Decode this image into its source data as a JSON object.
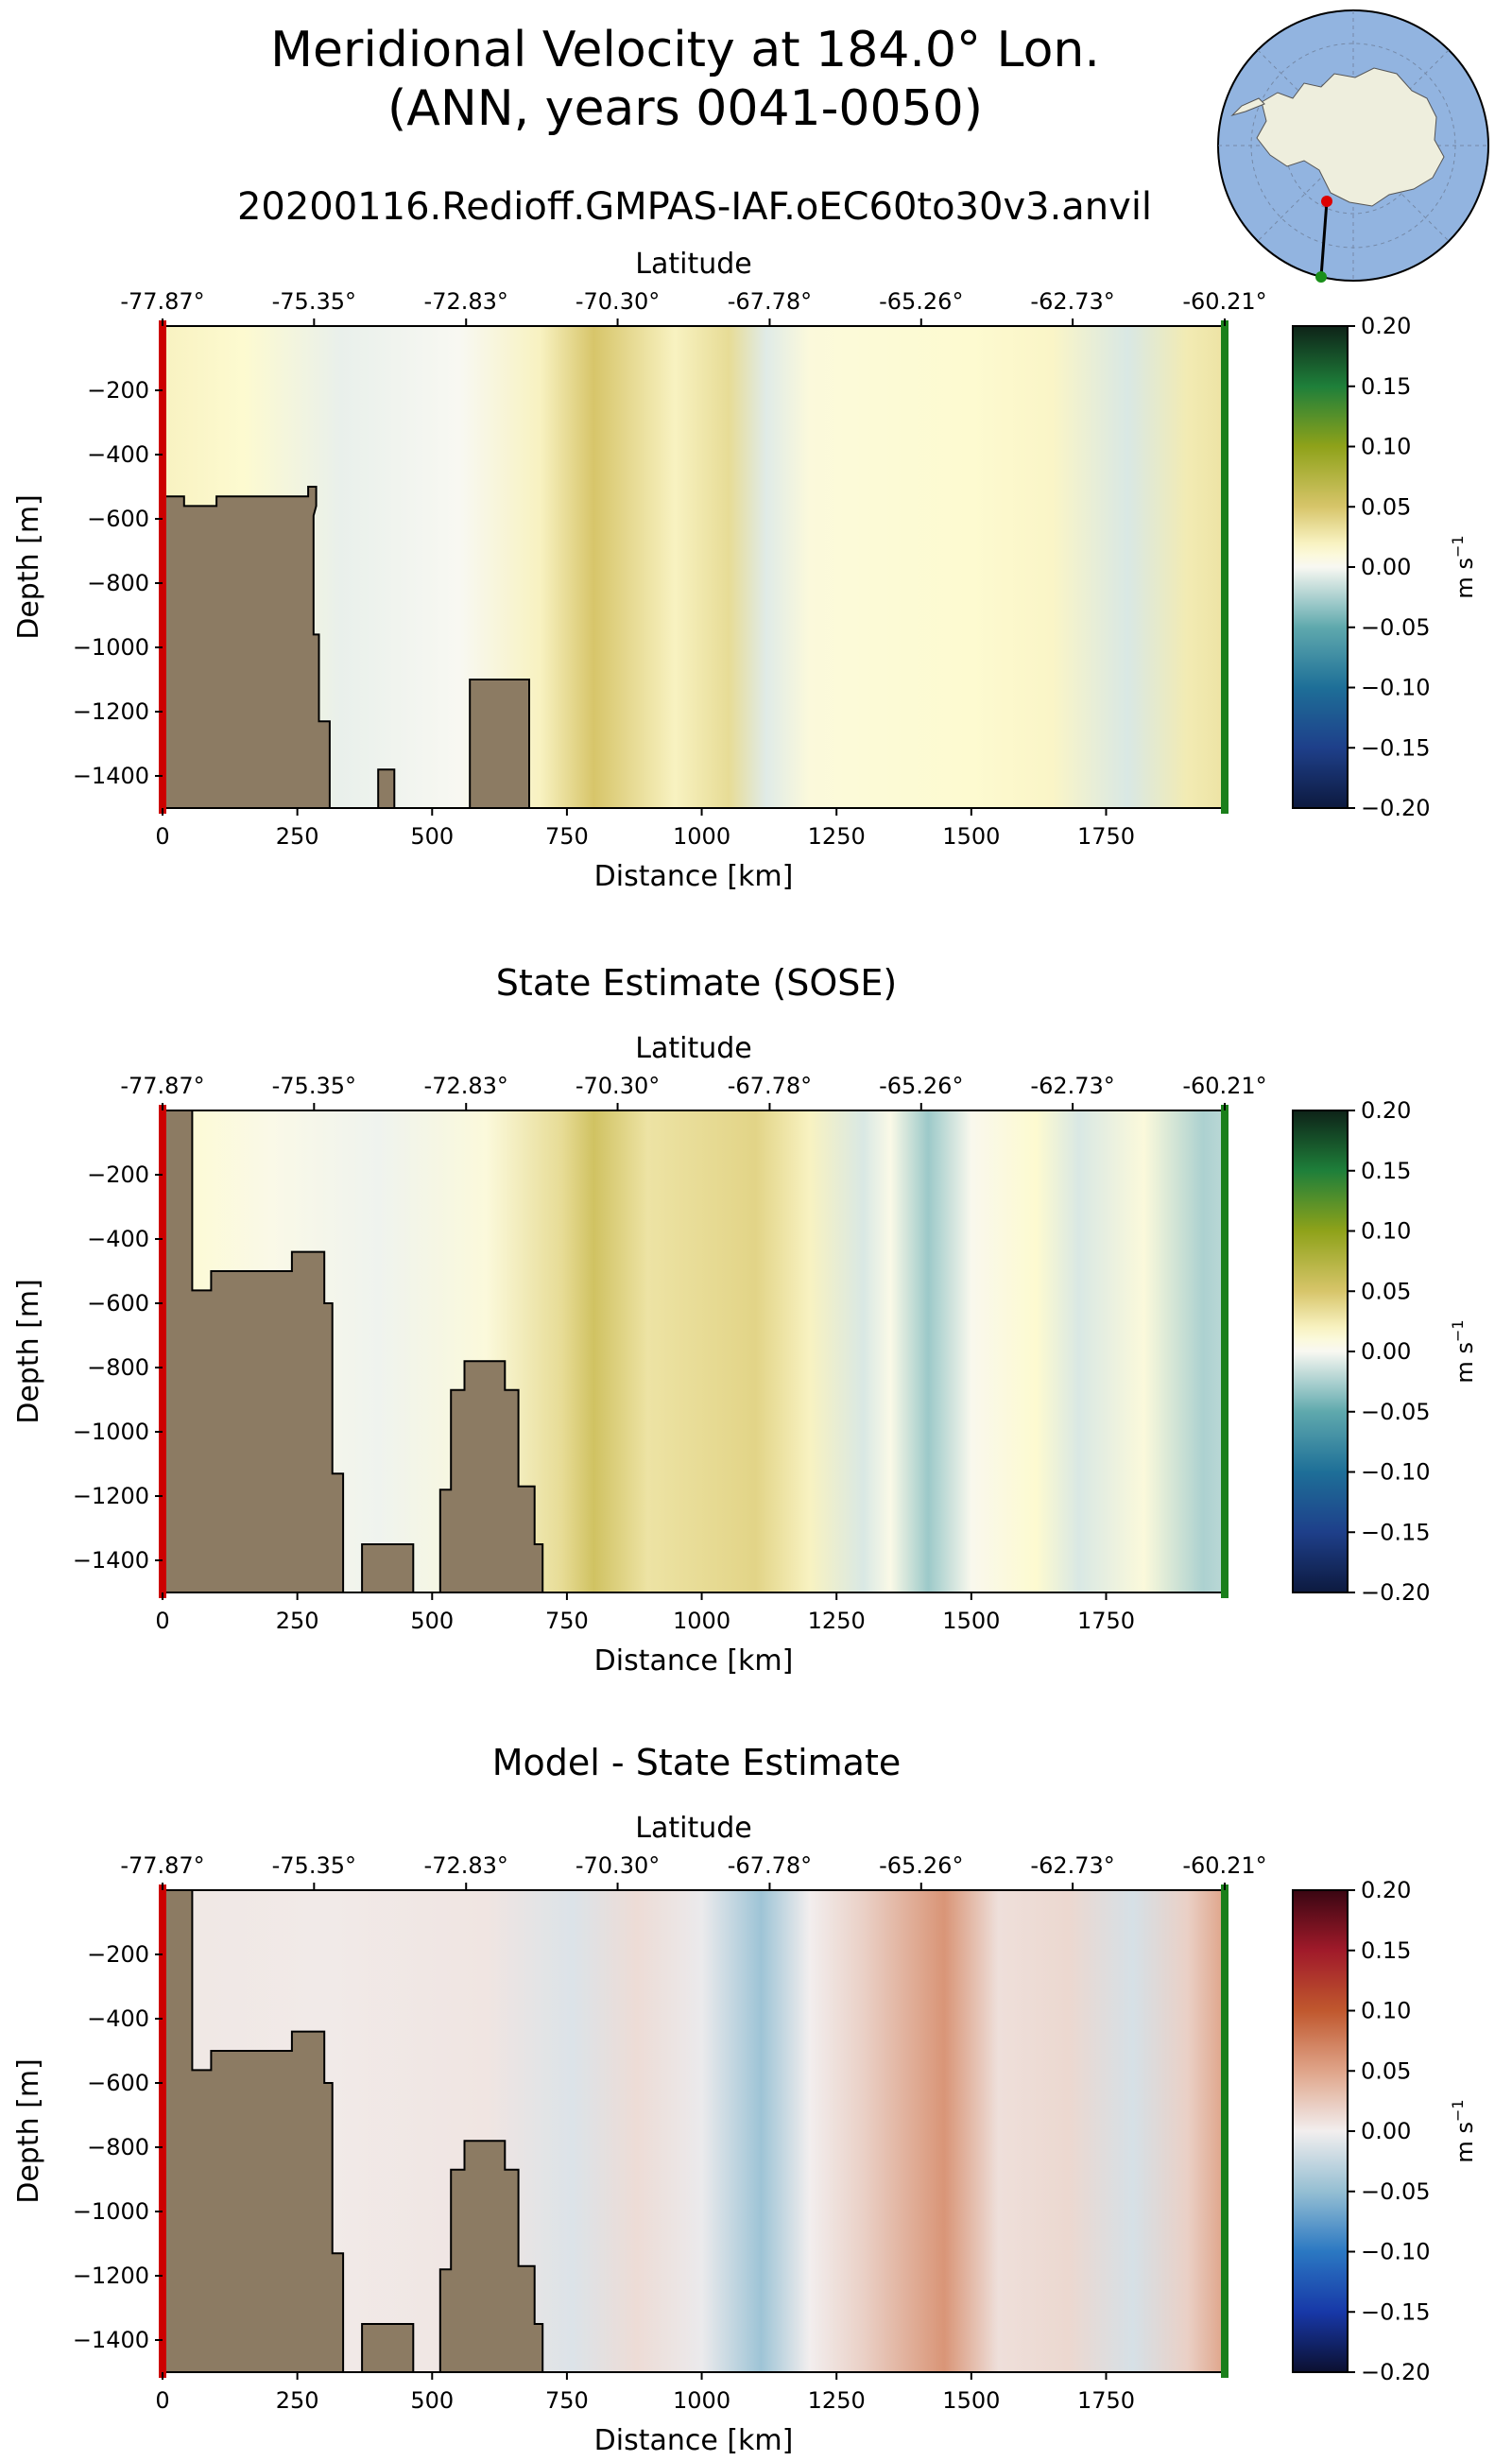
{
  "figure": {
    "title_line1": "Meridional Velocity at 184.0° Lon.",
    "title_line2": "(ANN, years 0041-0050)",
    "run_name": "20200116.Redioff.GMPAS-IAF.oEC60to30v3.anvil",
    "inset_map": "antarctic-polar-stereographic-map-with-transect"
  },
  "colors": {
    "land": "#8c7b63",
    "start_marker": "#cc0000",
    "end_marker": "#1a7f1a"
  },
  "labels": {
    "latitude": "Latitude",
    "distance": "Distance [km]",
    "depth": "Depth [m]",
    "units_prefix": "m s",
    "units_exp": "−1"
  },
  "chart_data": [
    {
      "type": "heatmap",
      "id": "model",
      "title": "",
      "xlabel": "Distance [km]",
      "ylabel": "Depth [m]",
      "top_xlabel": "Latitude",
      "xlim": [
        0,
        1970
      ],
      "ylim": [
        -1500,
        0
      ],
      "x_ticks": [
        0,
        250,
        500,
        750,
        1000,
        1250,
        1500,
        1750
      ],
      "x_tick_labels": [
        "0",
        "250",
        "500",
        "750",
        "1000",
        "1250",
        "1500",
        "1750"
      ],
      "y_ticks": [
        -200,
        -400,
        -600,
        -800,
        -1000,
        -1200,
        -1400
      ],
      "y_tick_labels": [
        "−200",
        "−400",
        "−600",
        "−800",
        "−1000",
        "−1200",
        "−1400"
      ],
      "top_tick_positions": [
        0,
        281,
        563,
        844,
        1126,
        1407,
        1688,
        1970
      ],
      "top_tick_labels": [
        "-77.87°",
        "-75.35°",
        "-72.83°",
        "-70.30°",
        "-67.78°",
        "-65.26°",
        "-62.73°",
        "-60.21°"
      ],
      "colorbar": {
        "colormap": "olive-green diverging",
        "range": [
          -0.2,
          0.2
        ],
        "ticks": [
          0.2,
          0.15,
          0.1,
          0.05,
          0.0,
          -0.05,
          -0.1,
          -0.15,
          -0.2
        ],
        "tick_labels": [
          "0.20",
          "0.15",
          "0.10",
          "0.05",
          "0.00",
          "−0.05",
          "−0.10",
          "−0.15",
          "−0.20"
        ],
        "label": "m s−1"
      },
      "velocity_profile": [
        {
          "distance": 0,
          "value": 0.02
        },
        {
          "distance": 150,
          "value": 0.015
        },
        {
          "distance": 330,
          "value": -0.005
        },
        {
          "distance": 550,
          "value": 0.0
        },
        {
          "distance": 700,
          "value": 0.02
        },
        {
          "distance": 800,
          "value": 0.05
        },
        {
          "distance": 950,
          "value": 0.02
        },
        {
          "distance": 1050,
          "value": 0.035
        },
        {
          "distance": 1120,
          "value": -0.008
        },
        {
          "distance": 1200,
          "value": 0.01
        },
        {
          "distance": 1300,
          "value": 0.012
        },
        {
          "distance": 1500,
          "value": 0.015
        },
        {
          "distance": 1650,
          "value": 0.018
        },
        {
          "distance": 1790,
          "value": -0.01
        },
        {
          "distance": 1900,
          "value": 0.025
        },
        {
          "distance": 1970,
          "value": 0.03
        }
      ],
      "bathymetry": [
        [
          0,
          -1500
        ],
        [
          0,
          -530
        ],
        [
          40,
          -530
        ],
        [
          40,
          -560
        ],
        [
          100,
          -560
        ],
        [
          100,
          -530
        ],
        [
          270,
          -530
        ],
        [
          270,
          -500
        ],
        [
          285,
          -500
        ],
        [
          285,
          -560
        ],
        [
          280,
          -590
        ],
        [
          280,
          -960
        ],
        [
          290,
          -960
        ],
        [
          290,
          -1230
        ],
        [
          310,
          -1230
        ],
        [
          310,
          -1500
        ],
        [
          400,
          -1500
        ],
        [
          400,
          -1380
        ],
        [
          430,
          -1380
        ],
        [
          430,
          -1500
        ],
        [
          570,
          -1500
        ],
        [
          570,
          -1100
        ],
        [
          680,
          -1100
        ],
        [
          680,
          -1500
        ]
      ]
    },
    {
      "type": "heatmap",
      "id": "sose",
      "title": "State Estimate (SOSE)",
      "xlabel": "Distance [km]",
      "ylabel": "Depth [m]",
      "top_xlabel": "Latitude",
      "xlim": [
        0,
        1970
      ],
      "ylim": [
        -1500,
        0
      ],
      "x_ticks": [
        0,
        250,
        500,
        750,
        1000,
        1250,
        1500,
        1750
      ],
      "x_tick_labels": [
        "0",
        "250",
        "500",
        "750",
        "1000",
        "1250",
        "1500",
        "1750"
      ],
      "y_ticks": [
        -200,
        -400,
        -600,
        -800,
        -1000,
        -1200,
        -1400
      ],
      "y_tick_labels": [
        "−200",
        "−400",
        "−600",
        "−800",
        "−1000",
        "−1200",
        "−1400"
      ],
      "top_tick_positions": [
        0,
        281,
        563,
        844,
        1126,
        1407,
        1688,
        1970
      ],
      "top_tick_labels": [
        "-77.87°",
        "-75.35°",
        "-72.83°",
        "-70.30°",
        "-67.78°",
        "-65.26°",
        "-62.73°",
        "-60.21°"
      ],
      "colorbar": {
        "colormap": "olive-green diverging",
        "range": [
          -0.2,
          0.2
        ],
        "ticks": [
          0.2,
          0.15,
          0.1,
          0.05,
          0.0,
          -0.05,
          -0.1,
          -0.15,
          -0.2
        ],
        "tick_labels": [
          "0.20",
          "0.15",
          "0.10",
          "0.05",
          "0.00",
          "−0.05",
          "−0.10",
          "−0.15",
          "−0.20"
        ],
        "label": "m s−1"
      },
      "velocity_profile": [
        {
          "distance": 0,
          "value": 0.015
        },
        {
          "distance": 200,
          "value": 0.005
        },
        {
          "distance": 400,
          "value": -0.003
        },
        {
          "distance": 600,
          "value": 0.01
        },
        {
          "distance": 740,
          "value": 0.035
        },
        {
          "distance": 800,
          "value": 0.055
        },
        {
          "distance": 900,
          "value": 0.03
        },
        {
          "distance": 1100,
          "value": 0.04
        },
        {
          "distance": 1200,
          "value": 0.02
        },
        {
          "distance": 1300,
          "value": -0.01
        },
        {
          "distance": 1350,
          "value": 0.005
        },
        {
          "distance": 1420,
          "value": -0.03
        },
        {
          "distance": 1500,
          "value": 0.002
        },
        {
          "distance": 1620,
          "value": 0.015
        },
        {
          "distance": 1700,
          "value": -0.01
        },
        {
          "distance": 1820,
          "value": 0.01
        },
        {
          "distance": 1930,
          "value": -0.025
        },
        {
          "distance": 1970,
          "value": -0.02
        }
      ],
      "bathymetry": [
        [
          0,
          -1500
        ],
        [
          0,
          0
        ],
        [
          55,
          0
        ],
        [
          55,
          -560
        ],
        [
          90,
          -560
        ],
        [
          90,
          -500
        ],
        [
          240,
          -500
        ],
        [
          240,
          -440
        ],
        [
          300,
          -440
        ],
        [
          300,
          -600
        ],
        [
          315,
          -600
        ],
        [
          315,
          -1130
        ],
        [
          335,
          -1130
        ],
        [
          335,
          -1500
        ],
        [
          370,
          -1500
        ],
        [
          370,
          -1350
        ],
        [
          465,
          -1350
        ],
        [
          465,
          -1500
        ],
        [
          515,
          -1500
        ],
        [
          515,
          -1180
        ],
        [
          535,
          -1180
        ],
        [
          535,
          -870
        ],
        [
          560,
          -870
        ],
        [
          560,
          -780
        ],
        [
          635,
          -780
        ],
        [
          635,
          -870
        ],
        [
          660,
          -870
        ],
        [
          660,
          -1170
        ],
        [
          690,
          -1170
        ],
        [
          690,
          -1350
        ],
        [
          705,
          -1350
        ],
        [
          705,
          -1500
        ]
      ]
    },
    {
      "type": "heatmap",
      "id": "difference",
      "title": "Model - State Estimate",
      "xlabel": "Distance [km]",
      "ylabel": "Depth [m]",
      "top_xlabel": "Latitude",
      "xlim": [
        0,
        1970
      ],
      "ylim": [
        -1500,
        0
      ],
      "x_ticks": [
        0,
        250,
        500,
        750,
        1000,
        1250,
        1500,
        1750
      ],
      "x_tick_labels": [
        "0",
        "250",
        "500",
        "750",
        "1000",
        "1250",
        "1500",
        "1750"
      ],
      "y_ticks": [
        -200,
        -400,
        -600,
        -800,
        -1000,
        -1200,
        -1400
      ],
      "y_tick_labels": [
        "−200",
        "−400",
        "−600",
        "−800",
        "−1000",
        "−1200",
        "−1400"
      ],
      "top_tick_positions": [
        0,
        281,
        563,
        844,
        1126,
        1407,
        1688,
        1970
      ],
      "top_tick_labels": [
        "-77.87°",
        "-75.35°",
        "-72.83°",
        "-70.30°",
        "-67.78°",
        "-65.26°",
        "-62.73°",
        "-60.21°"
      ],
      "colorbar": {
        "colormap": "blue-red diverging",
        "range": [
          -0.2,
          0.2
        ],
        "ticks": [
          0.2,
          0.15,
          0.1,
          0.05,
          0.0,
          -0.05,
          -0.1,
          -0.15,
          -0.2
        ],
        "tick_labels": [
          "0.20",
          "0.15",
          "0.10",
          "0.05",
          "0.00",
          "−0.05",
          "−0.10",
          "−0.15",
          "−0.20"
        ],
        "label": "m s−1"
      },
      "velocity_profile": [
        {
          "distance": 0,
          "value": 0.005
        },
        {
          "distance": 300,
          "value": 0.003
        },
        {
          "distance": 600,
          "value": 0.006
        },
        {
          "distance": 760,
          "value": -0.012
        },
        {
          "distance": 880,
          "value": 0.012
        },
        {
          "distance": 1000,
          "value": -0.004
        },
        {
          "distance": 1110,
          "value": -0.045
        },
        {
          "distance": 1200,
          "value": 0.0
        },
        {
          "distance": 1300,
          "value": 0.02
        },
        {
          "distance": 1450,
          "value": 0.06
        },
        {
          "distance": 1550,
          "value": 0.01
        },
        {
          "distance": 1680,
          "value": 0.015
        },
        {
          "distance": 1800,
          "value": -0.015
        },
        {
          "distance": 1900,
          "value": 0.02
        },
        {
          "distance": 1970,
          "value": 0.05
        }
      ],
      "bathymetry": [
        [
          0,
          -1500
        ],
        [
          0,
          0
        ],
        [
          55,
          0
        ],
        [
          55,
          -560
        ],
        [
          90,
          -560
        ],
        [
          90,
          -500
        ],
        [
          240,
          -500
        ],
        [
          240,
          -440
        ],
        [
          300,
          -440
        ],
        [
          300,
          -600
        ],
        [
          315,
          -600
        ],
        [
          315,
          -1130
        ],
        [
          335,
          -1130
        ],
        [
          335,
          -1500
        ],
        [
          370,
          -1500
        ],
        [
          370,
          -1350
        ],
        [
          465,
          -1350
        ],
        [
          465,
          -1500
        ],
        [
          515,
          -1500
        ],
        [
          515,
          -1180
        ],
        [
          535,
          -1180
        ],
        [
          535,
          -870
        ],
        [
          560,
          -870
        ],
        [
          560,
          -780
        ],
        [
          635,
          -780
        ],
        [
          635,
          -870
        ],
        [
          660,
          -870
        ],
        [
          660,
          -1170
        ],
        [
          690,
          -1170
        ],
        [
          690,
          -1350
        ],
        [
          705,
          -1350
        ],
        [
          705,
          -1500
        ]
      ]
    }
  ]
}
